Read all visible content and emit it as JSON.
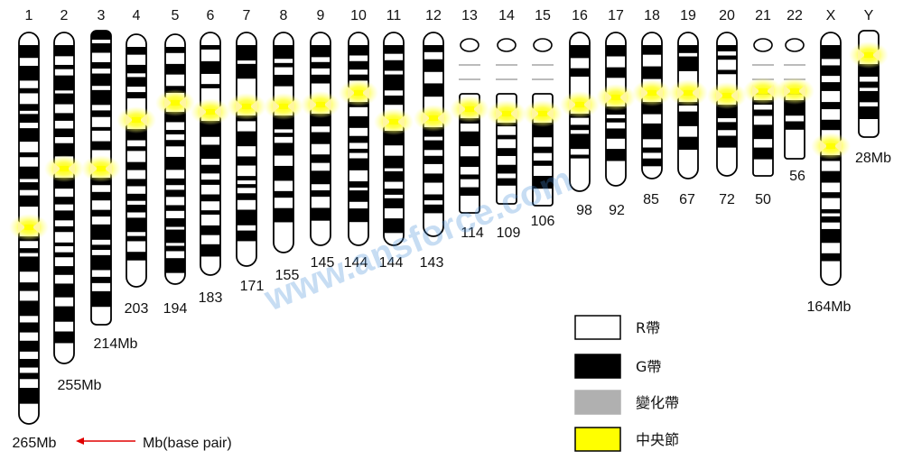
{
  "chromosomes": [
    {
      "id": "1",
      "size": "265Mb"
    },
    {
      "id": "2",
      "size": "255Mb"
    },
    {
      "id": "3",
      "size": "214Mb"
    },
    {
      "id": "4",
      "size": "203"
    },
    {
      "id": "5",
      "size": "194"
    },
    {
      "id": "6",
      "size": "183"
    },
    {
      "id": "7",
      "size": "171"
    },
    {
      "id": "8",
      "size": "155"
    },
    {
      "id": "9",
      "size": "145"
    },
    {
      "id": "10",
      "size": "144"
    },
    {
      "id": "11",
      "size": "144"
    },
    {
      "id": "12",
      "size": "143"
    },
    {
      "id": "13",
      "size": "114"
    },
    {
      "id": "14",
      "size": "109"
    },
    {
      "id": "15",
      "size": "106"
    },
    {
      "id": "16",
      "size": "98"
    },
    {
      "id": "17",
      "size": "92"
    },
    {
      "id": "18",
      "size": "85"
    },
    {
      "id": "19",
      "size": "67"
    },
    {
      "id": "20",
      "size": "72"
    },
    {
      "id": "21",
      "size": "50"
    },
    {
      "id": "22",
      "size": "56"
    },
    {
      "id": "X",
      "size": "164Mb"
    },
    {
      "id": "Y",
      "size": "28Mb"
    }
  ],
  "unit_note": "Mb(base pair)",
  "legend": [
    {
      "label": "R帶",
      "color": "#ffffff"
    },
    {
      "label": "G帶",
      "color": "#000000"
    },
    {
      "label": "變化帶",
      "color": "#b0b0b0"
    },
    {
      "label": "中央節",
      "color": "#ffff00"
    }
  ],
  "watermark": "www.ansforce.com",
  "colors": {
    "band": "#000000",
    "arrow": "#e00000",
    "centromere": "#ffff00"
  }
}
